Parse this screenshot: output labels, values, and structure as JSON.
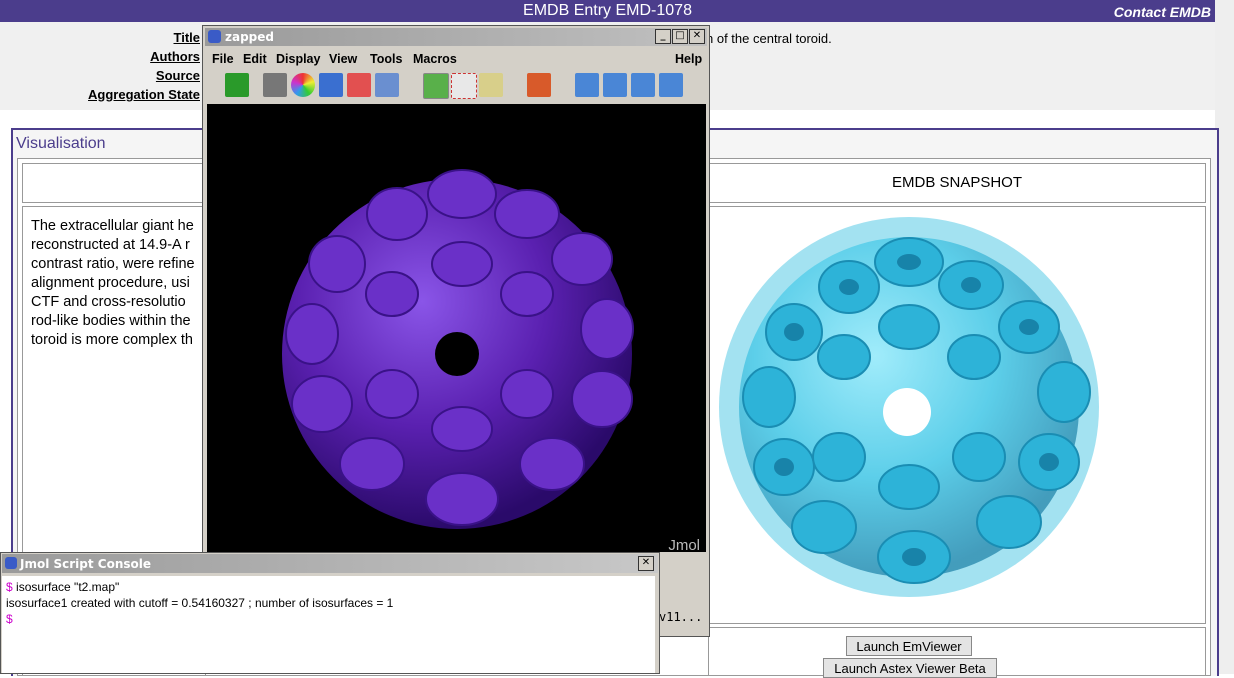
{
  "page": {
    "header_title": "EMDB Entry EMD-1078",
    "contact_link": "Contact EMDB"
  },
  "meta": {
    "title_label": "Title",
    "authors_label": "Authors",
    "source_label": "Source",
    "aggregation_label": "Aggregation State",
    "title_rest": "n of the central toroid."
  },
  "visualisation": {
    "heading": "Visualisation",
    "description_lines": [
      "The extracellular giant he",
      "reconstructed at 14.9-A r",
      "contrast ratio, were refine",
      "alignment procedure, usi",
      "CTF and cross-resolutio",
      "rod-like bodies within the",
      "toroid is more complex th"
    ],
    "snapshot_heading": "EMDB SNAPSHOT",
    "launch_emviewer": "Launch EmViewer",
    "launch_astex": "Launch Astex Viewer Beta"
  },
  "jmol": {
    "window_title": "zapped",
    "menu": [
      "File",
      "Edit",
      "Display",
      "View",
      "Tools",
      "Macros"
    ],
    "help": "Help",
    "watermark": "Jmol",
    "status_text": "v11...",
    "toolbar_icons": [
      "open-icon",
      "camera-icon",
      "rainbow-icon",
      "pointer-icon",
      "edit-icon",
      "print-icon",
      "rotate-icon",
      "select-icon",
      "measure-icon",
      "home-icon",
      "first-icon",
      "prev-icon",
      "next-icon",
      "last-icon"
    ]
  },
  "console": {
    "title": "Jmol Script Console",
    "prompt": "$",
    "line1_cmd": "isosurface  \"t2.map\"",
    "line2": "isosurface1 created with cutoff = 0.54160327 ; number of isosurfaces = 1"
  },
  "colors": {
    "header": "#4b3d8c",
    "jmol_surface": "#5a20b0",
    "snapshot_surface": "#3ec6e6"
  }
}
